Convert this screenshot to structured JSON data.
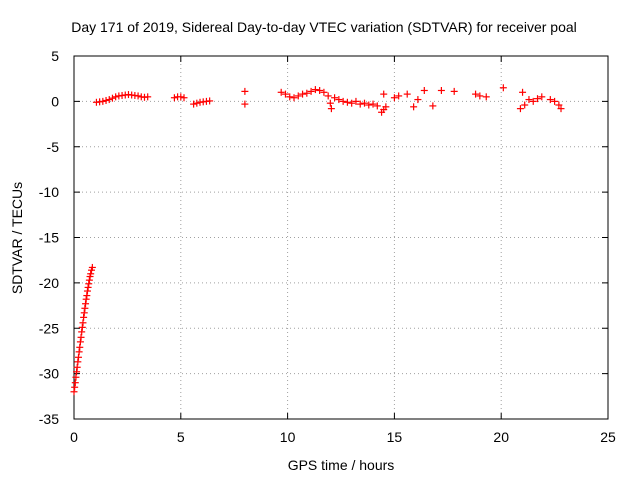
{
  "chart_data": {
    "type": "scatter",
    "title": "Day 171 of 2019, Sidereal Day-to-day VTEC variation (SDTVAR) for receiver poal",
    "xlabel": "GPS time / hours",
    "ylabel": "SDTVAR / TECUs",
    "xlim": [
      0,
      25
    ],
    "ylim": [
      -35,
      5
    ],
    "xticks": [
      "0",
      "5",
      "10",
      "15",
      "20",
      "25"
    ],
    "yticks": [
      "5",
      "0",
      "-5",
      "-10",
      "-15",
      "-20",
      "-25",
      "-30",
      "-35"
    ],
    "grid": true,
    "marker": "+",
    "marker_color": "#ff0000",
    "series": [
      {
        "name": "SDTVAR",
        "points": [
          [
            0.0,
            -32.0
          ],
          [
            0.03,
            -31.5
          ],
          [
            0.06,
            -31.0
          ],
          [
            0.09,
            -30.4
          ],
          [
            0.12,
            -29.8
          ],
          [
            0.15,
            -29.3
          ],
          [
            0.18,
            -28.7
          ],
          [
            0.21,
            -28.2
          ],
          [
            0.24,
            -27.6
          ],
          [
            0.27,
            -27.1
          ],
          [
            0.3,
            -26.5
          ],
          [
            0.33,
            -26.0
          ],
          [
            0.36,
            -25.4
          ],
          [
            0.39,
            -24.9
          ],
          [
            0.42,
            -24.4
          ],
          [
            0.45,
            -23.8
          ],
          [
            0.48,
            -23.3
          ],
          [
            0.51,
            -22.8
          ],
          [
            0.54,
            -22.3
          ],
          [
            0.57,
            -21.8
          ],
          [
            0.6,
            -21.4
          ],
          [
            0.63,
            -20.9
          ],
          [
            0.66,
            -20.5
          ],
          [
            0.69,
            -20.1
          ],
          [
            0.72,
            -19.7
          ],
          [
            0.75,
            -19.3
          ],
          [
            0.78,
            -19.0
          ],
          [
            0.82,
            -18.6
          ],
          [
            0.86,
            -18.3
          ],
          [
            1.05,
            -0.1
          ],
          [
            1.2,
            -0.05
          ],
          [
            1.35,
            0.0
          ],
          [
            1.5,
            0.1
          ],
          [
            1.65,
            0.2
          ],
          [
            1.8,
            0.35
          ],
          [
            1.95,
            0.5
          ],
          [
            2.1,
            0.6
          ],
          [
            2.25,
            0.65
          ],
          [
            2.4,
            0.7
          ],
          [
            2.55,
            0.75
          ],
          [
            2.7,
            0.7
          ],
          [
            2.85,
            0.65
          ],
          [
            3.0,
            0.6
          ],
          [
            3.15,
            0.5
          ],
          [
            3.3,
            0.45
          ],
          [
            3.45,
            0.5
          ],
          [
            4.7,
            0.4
          ],
          [
            4.85,
            0.5
          ],
          [
            5.0,
            0.5
          ],
          [
            5.15,
            0.4
          ],
          [
            5.6,
            -0.3
          ],
          [
            5.75,
            -0.2
          ],
          [
            5.9,
            -0.1
          ],
          [
            6.05,
            -0.05
          ],
          [
            6.2,
            0.0
          ],
          [
            6.35,
            0.05
          ],
          [
            8.0,
            1.1
          ],
          [
            8.0,
            -0.3
          ],
          [
            9.7,
            1.0
          ],
          [
            9.9,
            0.8
          ],
          [
            10.1,
            0.5
          ],
          [
            10.3,
            0.4
          ],
          [
            10.5,
            0.6
          ],
          [
            10.7,
            0.8
          ],
          [
            10.9,
            0.9
          ],
          [
            11.1,
            1.1
          ],
          [
            11.3,
            1.3
          ],
          [
            11.5,
            1.2
          ],
          [
            11.7,
            1.0
          ],
          [
            11.9,
            0.6
          ],
          [
            12.0,
            -0.2
          ],
          [
            12.05,
            -0.8
          ],
          [
            12.2,
            0.4
          ],
          [
            12.4,
            0.2
          ],
          [
            12.6,
            0.0
          ],
          [
            12.8,
            -0.1
          ],
          [
            13.0,
            -0.2
          ],
          [
            13.2,
            0.0
          ],
          [
            13.4,
            -0.3
          ],
          [
            13.6,
            -0.2
          ],
          [
            13.8,
            -0.4
          ],
          [
            14.0,
            -0.3
          ],
          [
            14.2,
            -0.5
          ],
          [
            14.4,
            -1.2
          ],
          [
            14.5,
            0.8
          ],
          [
            14.6,
            -0.6
          ],
          [
            14.5,
            -0.9
          ],
          [
            15.0,
            0.4
          ],
          [
            15.2,
            0.6
          ],
          [
            15.6,
            0.8
          ],
          [
            15.9,
            -0.6
          ],
          [
            16.1,
            0.2
          ],
          [
            16.4,
            1.2
          ],
          [
            16.8,
            -0.5
          ],
          [
            17.2,
            1.2
          ],
          [
            17.8,
            1.1
          ],
          [
            18.8,
            0.8
          ],
          [
            19.0,
            0.6
          ],
          [
            19.3,
            0.5
          ],
          [
            20.1,
            1.5
          ],
          [
            20.9,
            -0.8
          ],
          [
            21.0,
            1.0
          ],
          [
            21.1,
            -0.4
          ],
          [
            21.3,
            0.2
          ],
          [
            21.5,
            0.0
          ],
          [
            21.7,
            0.3
          ],
          [
            21.9,
            0.5
          ],
          [
            22.3,
            0.2
          ],
          [
            22.5,
            0.0
          ],
          [
            22.7,
            -0.4
          ],
          [
            22.8,
            -0.8
          ]
        ]
      }
    ]
  }
}
